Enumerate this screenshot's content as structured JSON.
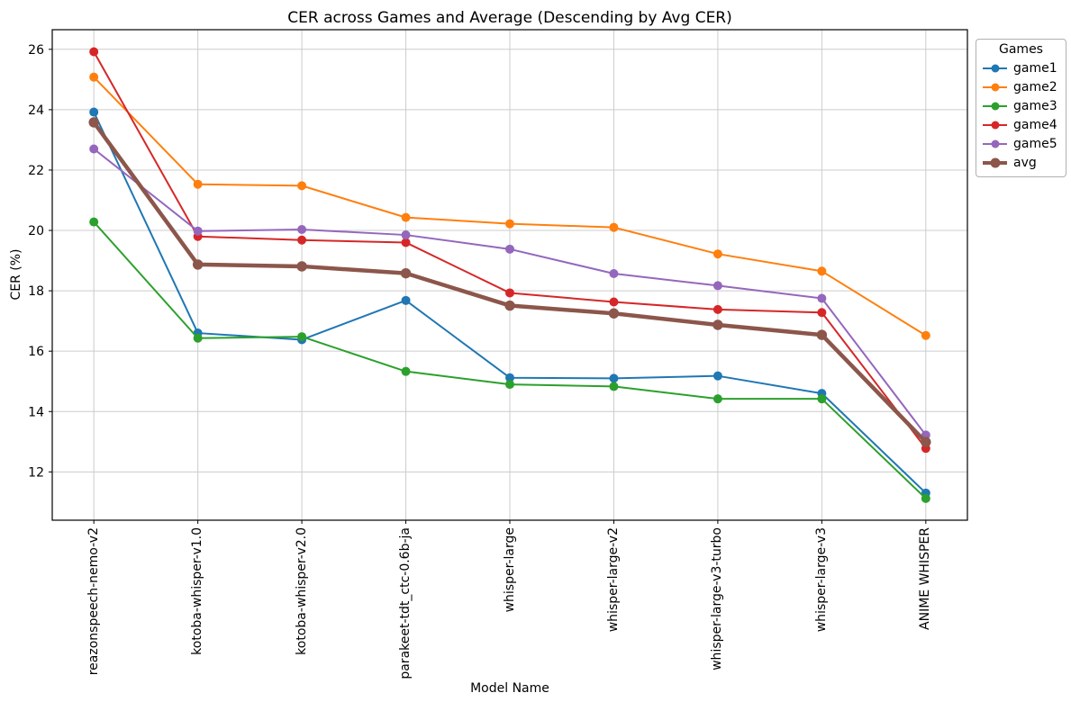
{
  "chart_data": {
    "type": "line",
    "title": "CER across Games and Average (Descending by Avg CER)",
    "xlabel": "Model Name",
    "ylabel": "CER (%)",
    "legend_title": "Games",
    "legend_position": "outside-upper-right",
    "grid": true,
    "ylim": [
      10.4,
      26.65
    ],
    "yticks": [
      12,
      14,
      16,
      18,
      20,
      22,
      24,
      26
    ],
    "categories": [
      "reazonspeech-nemo-v2",
      "kotoba-whisper-v1.0",
      "kotoba-whisper-v2.0",
      "parakeet-tdt_ctc-0.6b-ja",
      "whisper-large",
      "whisper-large-v2",
      "whisper-large-v3-turbo",
      "whisper-large-v3",
      "ANIME WHISPER"
    ],
    "series": [
      {
        "name": "game1",
        "color": "#1f77b4",
        "linewidth": 2,
        "markersize": 5,
        "values": [
          23.92,
          16.6,
          16.38,
          17.68,
          15.12,
          15.1,
          15.18,
          14.6,
          11.3
        ]
      },
      {
        "name": "game2",
        "color": "#ff7f0e",
        "linewidth": 2,
        "markersize": 5,
        "values": [
          25.08,
          21.53,
          21.48,
          20.43,
          20.22,
          20.1,
          19.22,
          18.65,
          16.52
        ]
      },
      {
        "name": "game3",
        "color": "#2ca02c",
        "linewidth": 2,
        "markersize": 5,
        "values": [
          20.28,
          16.43,
          16.48,
          15.33,
          14.9,
          14.83,
          14.42,
          14.42,
          11.12
        ]
      },
      {
        "name": "game4",
        "color": "#d62728",
        "linewidth": 2,
        "markersize": 5,
        "values": [
          25.92,
          19.8,
          19.68,
          19.6,
          17.93,
          17.63,
          17.38,
          17.28,
          12.78
        ]
      },
      {
        "name": "game5",
        "color": "#9467bd",
        "linewidth": 2,
        "markersize": 5,
        "values": [
          22.7,
          19.98,
          20.03,
          19.85,
          19.38,
          18.57,
          18.17,
          17.75,
          13.22
        ]
      },
      {
        "name": "avg",
        "color": "#8c564b",
        "linewidth": 4.5,
        "markersize": 5.7,
        "values": [
          23.58,
          18.87,
          18.81,
          18.58,
          17.51,
          17.25,
          16.87,
          16.54,
          12.99
        ]
      }
    ]
  }
}
